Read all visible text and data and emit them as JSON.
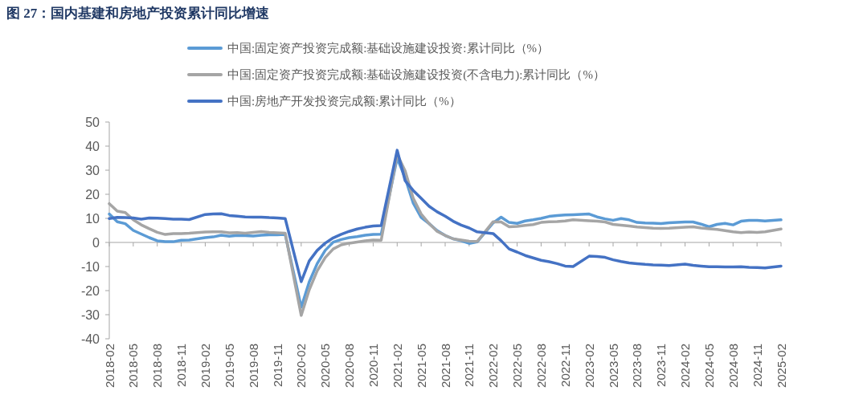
{
  "chart_data": {
    "type": "line",
    "title": "图 27：国内基建和房地产投资累计同比增速",
    "x": [
      "2018-02",
      "2018-03",
      "2018-04",
      "2018-05",
      "2018-06",
      "2018-07",
      "2018-08",
      "2018-09",
      "2018-10",
      "2018-11",
      "2018-12",
      "2019-02",
      "2019-03",
      "2019-04",
      "2019-05",
      "2019-06",
      "2019-07",
      "2019-08",
      "2019-09",
      "2019-10",
      "2019-11",
      "2019-12",
      "2020-02",
      "2020-03",
      "2020-04",
      "2020-05",
      "2020-06",
      "2020-07",
      "2020-08",
      "2020-09",
      "2020-10",
      "2020-11",
      "2020-12",
      "2021-02",
      "2021-03",
      "2021-04",
      "2021-05",
      "2021-06",
      "2021-07",
      "2021-08",
      "2021-09",
      "2021-10",
      "2021-11",
      "2021-12",
      "2022-02",
      "2022-03",
      "2022-04",
      "2022-05",
      "2022-06",
      "2022-07",
      "2022-08",
      "2022-09",
      "2022-10",
      "2022-11",
      "2022-12",
      "2023-02",
      "2023-03",
      "2023-04",
      "2023-05",
      "2023-06",
      "2023-07",
      "2023-08",
      "2023-09",
      "2023-10",
      "2023-11",
      "2023-12",
      "2024-02",
      "2024-03",
      "2024-04",
      "2024-05",
      "2024-06",
      "2024-07",
      "2024-08",
      "2024-09",
      "2024-10",
      "2024-11",
      "2024-12",
      "2025-02"
    ],
    "series": [
      {
        "name": "中国:固定资产投资完成额:基础设施建设投资:累计同比（%）",
        "color": "#5b9bd5",
        "values": [
          11.8,
          8.6,
          7.8,
          5.0,
          3.5,
          2.0,
          0.7,
          0.3,
          0.3,
          0.9,
          1.0,
          2.0,
          2.3,
          3.0,
          2.6,
          2.9,
          2.8,
          2.7,
          3.0,
          3.2,
          3.2,
          3.3,
          -26.9,
          -16.4,
          -8.8,
          -3.3,
          0.1,
          1.2,
          2.0,
          2.4,
          3.0,
          3.3,
          3.4,
          35.0,
          26.8,
          16.4,
          10.4,
          7.8,
          4.9,
          2.9,
          1.5,
          0.7,
          -0.4,
          0.2,
          8.1,
          10.5,
          8.3,
          7.9,
          8.9,
          9.4,
          10.0,
          10.8,
          11.2,
          11.4,
          11.5,
          11.8,
          10.6,
          9.8,
          9.2,
          9.9,
          9.4,
          8.3,
          8.1,
          8.0,
          7.8,
          8.2,
          8.5,
          8.5,
          7.6,
          6.5,
          7.5,
          7.9,
          7.3,
          8.8,
          9.2,
          9.2,
          8.9,
          9.4
        ]
      },
      {
        "name": "中国:固定资产投资完成额:基础设施建设投资(不含电力):累计同比（%）",
        "color": "#a5a5a5",
        "values": [
          16.1,
          13.0,
          12.4,
          9.4,
          7.3,
          5.7,
          4.2,
          3.3,
          3.7,
          3.7,
          3.8,
          4.3,
          4.4,
          4.4,
          4.0,
          4.1,
          3.8,
          4.2,
          4.5,
          4.2,
          4.0,
          3.8,
          -30.3,
          -19.7,
          -11.8,
          -6.3,
          -2.7,
          -1.0,
          -0.3,
          0.2,
          0.7,
          1.0,
          0.9,
          36.6,
          29.7,
          18.4,
          11.8,
          7.8,
          4.6,
          2.9,
          1.5,
          1.0,
          0.5,
          0.4,
          8.6,
          8.5,
          6.5,
          6.7,
          7.1,
          7.4,
          8.3,
          8.6,
          8.7,
          8.9,
          9.4,
          9.0,
          8.8,
          8.5,
          7.5,
          7.2,
          6.8,
          6.4,
          6.2,
          5.9,
          5.8,
          5.9,
          6.3,
          6.5,
          6.0,
          5.7,
          5.4,
          4.9,
          4.4,
          4.1,
          4.3,
          4.2,
          4.4,
          5.6
        ]
      },
      {
        "name": "中国:房地产开发投资完成额:累计同比（%）",
        "color": "#4472c4",
        "values": [
          9.9,
          10.4,
          10.3,
          10.2,
          9.7,
          10.2,
          10.1,
          9.9,
          9.7,
          9.7,
          9.5,
          11.6,
          11.8,
          11.9,
          11.2,
          10.9,
          10.6,
          10.5,
          10.5,
          10.3,
          10.2,
          9.9,
          -16.3,
          -7.7,
          -3.3,
          -0.3,
          1.9,
          3.4,
          4.6,
          5.6,
          6.3,
          6.8,
          7.0,
          38.3,
          25.6,
          21.6,
          18.3,
          15.0,
          12.7,
          10.9,
          8.8,
          7.2,
          6.0,
          4.4,
          3.7,
          0.7,
          -2.7,
          -4.0,
          -5.4,
          -6.4,
          -7.4,
          -8.0,
          -8.8,
          -9.8,
          -10.0,
          -5.7,
          -5.8,
          -6.2,
          -7.2,
          -7.9,
          -8.5,
          -8.8,
          -9.1,
          -9.3,
          -9.4,
          -9.6,
          -9.0,
          -9.5,
          -9.8,
          -10.1,
          -10.1,
          -10.2,
          -10.2,
          -10.1,
          -10.3,
          -10.4,
          -10.6,
          -9.8
        ]
      }
    ],
    "xlim": [
      "2018-02",
      "2025-02"
    ],
    "xticks": [
      "2018-02",
      "2018-05",
      "2018-08",
      "2018-11",
      "2019-02",
      "2019-05",
      "2019-08",
      "2019-11",
      "2020-02",
      "2020-05",
      "2020-08",
      "2020-11",
      "2021-02",
      "2021-05",
      "2021-08",
      "2021-11",
      "2022-02",
      "2022-05",
      "2022-08",
      "2022-11",
      "2023-02",
      "2023-05",
      "2023-08",
      "2023-11",
      "2024-02",
      "2024-05",
      "2024-08",
      "2024-11",
      "2025-02"
    ],
    "ylim": [
      -40,
      50
    ],
    "yticks": [
      -40,
      -30,
      -20,
      -10,
      0,
      10,
      20,
      30,
      40,
      50
    ],
    "legend": "top",
    "marker": "none",
    "line_style": "solid"
  }
}
